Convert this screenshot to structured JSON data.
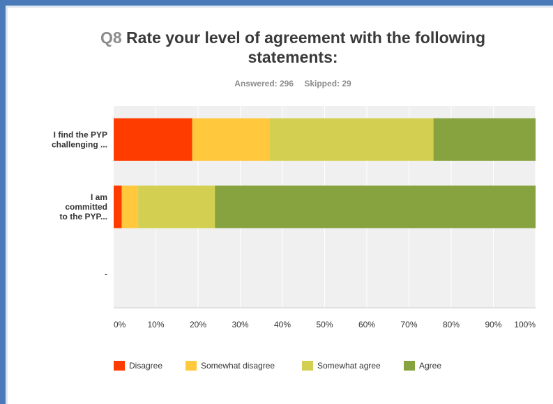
{
  "question_number": "Q8",
  "title": "Rate your level of agreement with the following statements:",
  "answered": "Answered: 296",
  "skipped": "Skipped: 29",
  "chart_data": {
    "type": "bar",
    "orientation": "horizontal",
    "stacked": true,
    "categories": [
      "I find the PYP challenging ...",
      "I am committed to the PYP...",
      "-"
    ],
    "category_lines": [
      [
        "I find the PYP",
        "challenging ..."
      ],
      [
        "I am",
        "committed",
        "to the PYP..."
      ],
      [
        "-"
      ]
    ],
    "series": [
      {
        "name": "Disagree",
        "color": "#ff3c00",
        "values": [
          18.6,
          1.9,
          0
        ]
      },
      {
        "name": "Somewhat disagree",
        "color": "#ffc83d",
        "values": [
          18.3,
          3.9,
          0
        ]
      },
      {
        "name": "Somewhat agree",
        "color": "#d3d051",
        "values": [
          38.9,
          18.2,
          0
        ]
      },
      {
        "name": "Agree",
        "color": "#86a33f",
        "values": [
          24.2,
          76.0,
          0
        ]
      }
    ],
    "xlim": [
      0,
      100
    ],
    "x_ticks": [
      "0%",
      "10%",
      "20%",
      "30%",
      "40%",
      "50%",
      "60%",
      "70%",
      "80%",
      "90%",
      "100%"
    ],
    "grid": true,
    "legend_position": "bottom"
  }
}
